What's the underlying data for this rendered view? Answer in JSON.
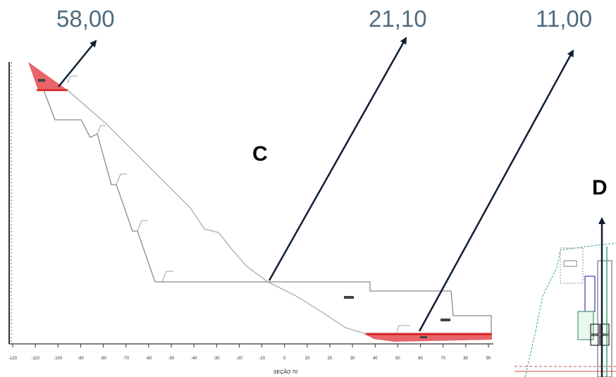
{
  "values": {
    "left": "58,00",
    "middle": "21,10",
    "right": "11,00"
  },
  "labels": {
    "c": "C",
    "d": "D"
  },
  "section": {
    "xlabel": "SEÇÃO 70",
    "ticks": [
      "-120",
      "-110",
      "-100",
      "-90",
      "-80",
      "-70",
      "-60",
      "-50",
      "-40",
      "-30",
      "-20",
      "-10",
      "0",
      "10",
      "20",
      "30",
      "40",
      "50",
      "60",
      "70",
      "80",
      "90"
    ]
  },
  "colors": {
    "value_text": "#4f6b7f",
    "fill_red": "#e8646a",
    "profile_line": "#888888",
    "arrow": "#0f1f33"
  }
}
